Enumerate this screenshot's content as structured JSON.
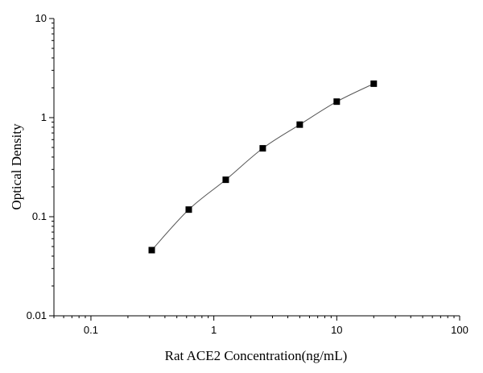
{
  "chart_data": {
    "type": "scatter",
    "title": "",
    "xlabel": "Rat ACE2 Concentration(ng/mL)",
    "ylabel": "Optical Density",
    "xscale": "log",
    "yscale": "log",
    "xlim": [
      0.05,
      100
    ],
    "ylim": [
      0.01,
      10
    ],
    "x_ticks": [
      0.1,
      1,
      10,
      100
    ],
    "x_tick_labels": [
      "0.1",
      "1",
      "10",
      "100"
    ],
    "y_ticks": [
      0.01,
      0.1,
      1,
      10
    ],
    "y_tick_labels": [
      "0.01",
      "0.1",
      "1",
      "10"
    ],
    "grid": false,
    "legend": "none",
    "series": [
      {
        "x": [
          0.3125,
          0.625,
          1.25,
          2.5,
          5,
          10,
          20
        ],
        "y": [
          0.046,
          0.118,
          0.236,
          0.49,
          0.85,
          1.45,
          2.2
        ],
        "marker": "square",
        "connected_by": "smooth-curve",
        "marker_color": "#000000",
        "line_color": "#555555"
      }
    ]
  }
}
